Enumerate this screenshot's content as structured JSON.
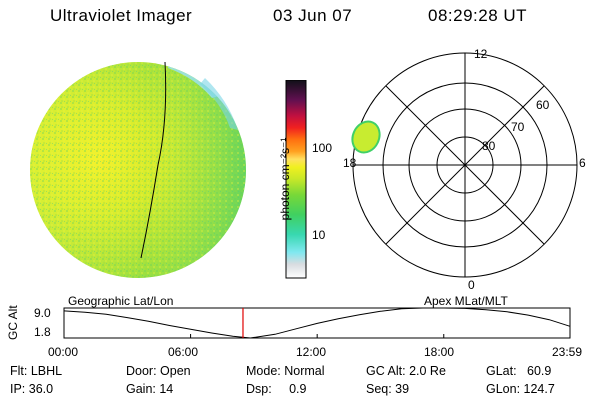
{
  "header": {
    "title": "Ultraviolet Imager",
    "date": "03 Jun 07",
    "time": "08:29:28 UT"
  },
  "colorbar": {
    "label": "photon cm⁻²s⁻¹",
    "ticks": [
      "100",
      "10"
    ]
  },
  "polar": {
    "lat_labels": [
      "80",
      "70",
      "60"
    ],
    "mlt_labels": [
      "12",
      "18",
      "6",
      "0"
    ]
  },
  "timeline": {
    "left_title": "Geographic Lat/Lon",
    "right_title": "Apex MLat/MLT",
    "y_axis_label": "GC Alt",
    "y_ticks": [
      "9.0",
      "1.8"
    ],
    "x_ticks": [
      "00:00",
      "06:00",
      "12:00",
      "18:00",
      "23:59"
    ]
  },
  "info": {
    "flt": "Flt: LBHL",
    "ip": "IP: 36.0",
    "door": "Door: Open",
    "gain": "Gain: 14",
    "mode": "Mode: Normal",
    "dsp": "Dsp:     0.9",
    "gc_alt": "GC Alt: 2.0 Re",
    "seq": "Seq: 39",
    "glat": "GLat:   60.9",
    "glon": "GLon: 124.7"
  },
  "chart_data": {
    "type": "line",
    "series": [
      {
        "x": [
          "00:00",
          "01:00",
          "02:00",
          "03:00",
          "04:00",
          "05:00",
          "06:00",
          "07:00",
          "08:00",
          "08:50",
          "10:00",
          "11:00",
          "12:00",
          "13:00",
          "14:00",
          "15:00",
          "16:00",
          "17:00",
          "18:00",
          "19:00",
          "20:00",
          "21:00",
          "22:00",
          "23:00",
          "23:59"
        ],
        "y": [
          8.3,
          8.0,
          7.5,
          6.7,
          5.8,
          4.8,
          3.9,
          3.0,
          2.2,
          1.8,
          2.7,
          4.0,
          5.3,
          6.4,
          7.4,
          8.2,
          8.8,
          9.0,
          9.0,
          8.9,
          8.6,
          8.1,
          7.3,
          6.2,
          4.6
        ]
      }
    ],
    "ylim": [
      1.8,
      9.0
    ],
    "xlim": [
      "00:00",
      "23:59"
    ],
    "marker_time": "08:29"
  }
}
